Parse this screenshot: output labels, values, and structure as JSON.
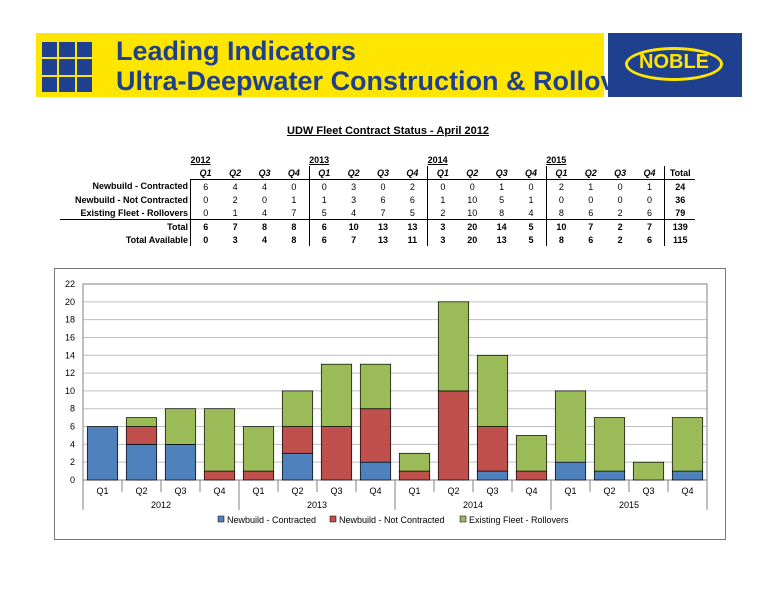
{
  "header": {
    "title_line1": "Leading Indicators",
    "title_line2": "Ultra-Deepwater Construction & Rollover",
    "logo_text": "NOBLE",
    "colors": {
      "banner": "#ffe600",
      "brand_blue": "#1f3f8f"
    }
  },
  "table": {
    "title": "UDW Fleet Contract Status - April 2012",
    "years": [
      "2012",
      "2013",
      "2014",
      "2015"
    ],
    "quarters": [
      "Q1",
      "Q2",
      "Q3",
      "Q4"
    ],
    "total_label": "Total",
    "rows": [
      {
        "label": "Newbuild - Contracted",
        "values": [
          "6",
          "4",
          "4",
          "0",
          "0",
          "3",
          "0",
          "2",
          "0",
          "0",
          "1",
          "0",
          "2",
          "1",
          "0",
          "1"
        ],
        "total": "24"
      },
      {
        "label": "Newbuild - Not Contracted",
        "values": [
          "0",
          "2",
          "0",
          "1",
          "1",
          "3",
          "6",
          "6",
          "1",
          "10",
          "5",
          "1",
          "0",
          "0",
          "0",
          "0"
        ],
        "total": "36"
      },
      {
        "label": "Existing Fleet - Rollovers",
        "values": [
          "0",
          "1",
          "4",
          "7",
          "5",
          "4",
          "7",
          "5",
          "2",
          "10",
          "8",
          "4",
          "8",
          "6",
          "2",
          "6"
        ],
        "total": "79"
      },
      {
        "label": "Total",
        "values": [
          "6",
          "7",
          "8",
          "8",
          "6",
          "10",
          "13",
          "13",
          "3",
          "20",
          "14",
          "5",
          "10",
          "7",
          "2",
          "7"
        ],
        "total": "139"
      },
      {
        "label": "Total Available",
        "values": [
          "0",
          "3",
          "4",
          "8",
          "6",
          "7",
          "13",
          "11",
          "3",
          "20",
          "13",
          "5",
          "8",
          "6",
          "2",
          "6"
        ],
        "total": "115"
      }
    ]
  },
  "chart_data": {
    "type": "bar",
    "stacked": true,
    "categories": [
      "Q1",
      "Q2",
      "Q3",
      "Q4",
      "Q1",
      "Q2",
      "Q3",
      "Q4",
      "Q1",
      "Q2",
      "Q3",
      "Q4",
      "Q1",
      "Q2",
      "Q3",
      "Q4"
    ],
    "groups": [
      "2012",
      "2013",
      "2014",
      "2015"
    ],
    "series": [
      {
        "name": "Newbuild - Contracted",
        "color": "#4f81bd",
        "values": [
          6,
          4,
          4,
          0,
          0,
          3,
          0,
          2,
          0,
          0,
          1,
          0,
          2,
          1,
          0,
          1
        ]
      },
      {
        "name": "Newbuild - Not Contracted",
        "color": "#c0504d",
        "values": [
          0,
          2,
          0,
          1,
          1,
          3,
          6,
          6,
          1,
          10,
          5,
          1,
          0,
          0,
          0,
          0
        ]
      },
      {
        "name": "Existing Fleet - Rollovers",
        "color": "#9bbb59",
        "values": [
          0,
          1,
          4,
          7,
          5,
          4,
          7,
          5,
          2,
          10,
          8,
          4,
          8,
          6,
          2,
          6
        ]
      }
    ],
    "ylim": [
      0,
      22
    ],
    "yticks": [
      "0",
      "2",
      "4",
      "6",
      "8",
      "10",
      "12",
      "14",
      "16",
      "18",
      "20",
      "22"
    ],
    "grid": true,
    "legend": "bottom"
  }
}
